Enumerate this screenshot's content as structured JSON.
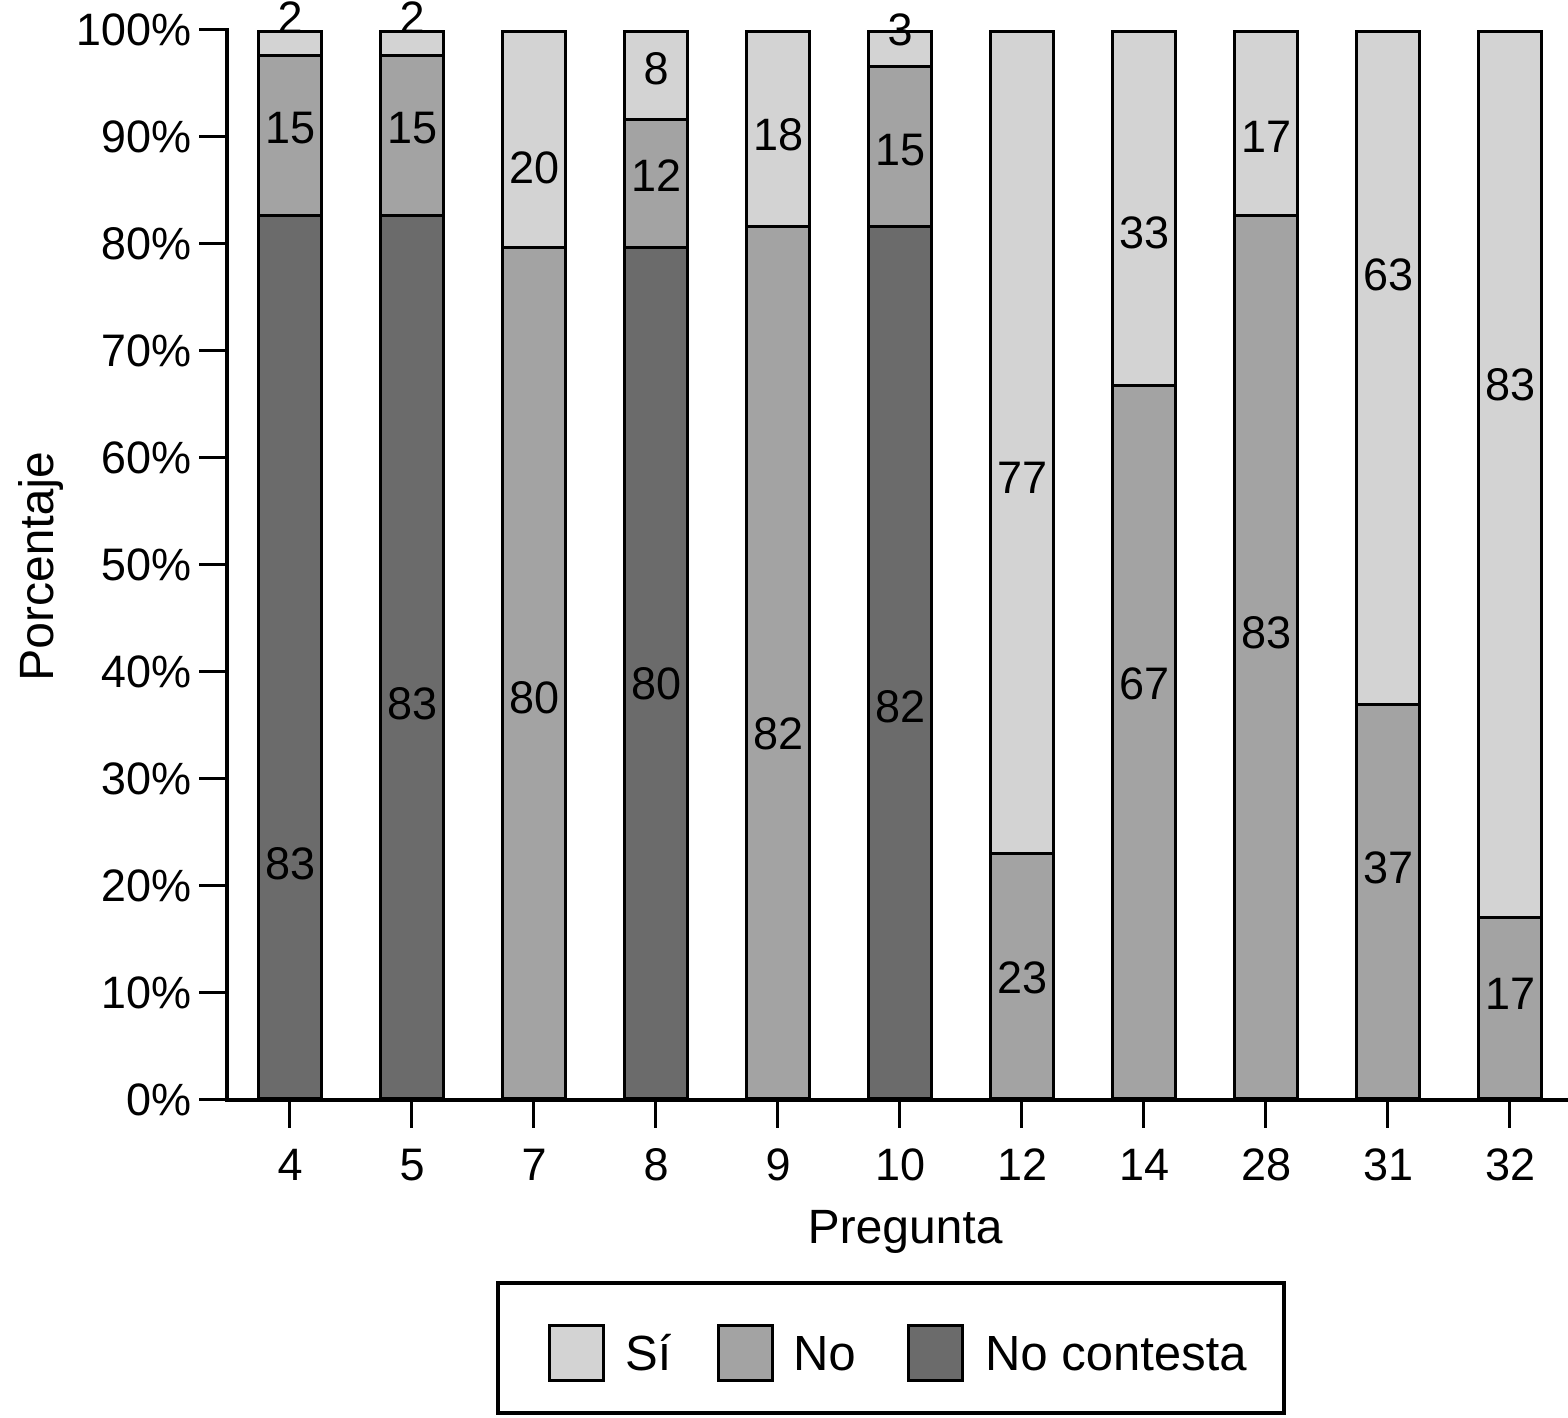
{
  "chart_data": {
    "type": "bar",
    "subtype": "stacked_percentage",
    "title": "",
    "xlabel": "Pregunta",
    "ylabel": "Porcentaje",
    "categories": [
      "4",
      "5",
      "7",
      "8",
      "9",
      "10",
      "12",
      "14",
      "28",
      "31",
      "32"
    ],
    "series": [
      {
        "name": "Sí",
        "color": "#d3d3d3",
        "values": [
          2,
          2,
          20,
          8,
          18,
          3,
          77,
          33,
          17,
          63,
          83
        ],
        "label_pos": [
          101.1,
          101.1,
          87.1,
          96.4,
          90.2,
          100.0,
          58.1,
          81.0,
          90.0,
          77.1,
          66.8
        ]
      },
      {
        "name": "No",
        "color": "#a3a3a3",
        "values": [
          15,
          15,
          80,
          12,
          82,
          15,
          23,
          67,
          83,
          37,
          17
        ],
        "label_pos": [
          90.8,
          90.8,
          37.6,
          86.4,
          34.2,
          88.8,
          11.4,
          38.9,
          43.6,
          21.7,
          9.9
        ]
      },
      {
        "name": "No contesta",
        "color": "#6b6b6b",
        "values": [
          83,
          83,
          0,
          80,
          0,
          82,
          0,
          0,
          0,
          0,
          0
        ],
        "label_pos": [
          22.1,
          37.0,
          null,
          38.9,
          null,
          36.7,
          null,
          null,
          null,
          null,
          null
        ]
      }
    ],
    "stack_order_bottom_to_top": [
      "No contesta",
      "No",
      "Sí"
    ],
    "ylim": [
      0,
      100
    ],
    "yticks": [
      "0%",
      "10%",
      "20%",
      "30%",
      "40%",
      "50%",
      "60%",
      "70%",
      "80%",
      "90%",
      "100%"
    ],
    "grid": "off",
    "bar_border_color": "#000000",
    "axis_color": "#000000",
    "legend_position": "bottom",
    "legend": [
      "Sí",
      "No",
      "No contesta"
    ]
  }
}
